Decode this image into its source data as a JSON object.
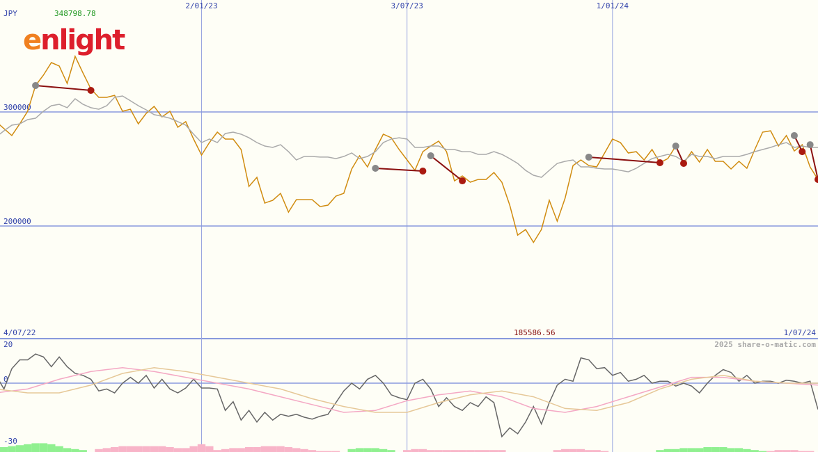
{
  "chart_data": [
    {
      "type": "line",
      "currency": "JPY",
      "max_label": 348798.78,
      "min_label": 185586.56,
      "logo": [
        "e",
        "nlight"
      ],
      "x": [
        0,
        1,
        2,
        3,
        4,
        5,
        6,
        7,
        8,
        9,
        10,
        11,
        12,
        13,
        14,
        15,
        16,
        17,
        18,
        19,
        20,
        21,
        22,
        23,
        24,
        25,
        26,
        27,
        28,
        29,
        30,
        31,
        32,
        33,
        34,
        35,
        36,
        37,
        38,
        39,
        40,
        41,
        42,
        43,
        44,
        45,
        46,
        47,
        48,
        49,
        50,
        51,
        52,
        53,
        54,
        55,
        56,
        57,
        58,
        59,
        60,
        61,
        62,
        63,
        64,
        65,
        66,
        67,
        68,
        69,
        70,
        71,
        72,
        73,
        74,
        75,
        76,
        77,
        78,
        79,
        80,
        81,
        82,
        83,
        84,
        85,
        86,
        87,
        88,
        89,
        90,
        91,
        92,
        93,
        94,
        95,
        96,
        97,
        98,
        99,
        100,
        101,
        102,
        103,
        104
      ],
      "xlim": [
        0.5,
        104
      ],
      "xticks": [
        {
          "value": 26,
          "label": "2/01/23"
        },
        {
          "value": 52,
          "label": "3/07/23"
        },
        {
          "value": 78,
          "label": "1/01/24"
        }
      ],
      "x_end_labels": [
        "4/07/22",
        "1/07/24"
      ],
      "ylim": [
        101220,
        398170
      ],
      "yticks": [
        200000,
        300000
      ],
      "grid": true,
      "series": [
        {
          "color": "#d08c10",
          "values": [
            291500,
            285400,
            279300,
            289600,
            300600,
            323200,
            332300,
            343300,
            340300,
            325000,
            348800,
            334200,
            320100,
            312800,
            312800,
            314600,
            300600,
            302400,
            289600,
            298800,
            304900,
            295700,
            300600,
            286600,
            291500,
            276200,
            262200,
            273200,
            282300,
            276200,
            276200,
            267100,
            234700,
            242700,
            220100,
            222500,
            228600,
            212200,
            223100,
            223100,
            223100,
            217000,
            218300,
            226200,
            228600,
            250000,
            261600,
            251800,
            267100,
            280500,
            277400,
            267100,
            257900,
            248800,
            265200,
            270100,
            274400,
            265200,
            239600,
            243900,
            238400,
            240800,
            240800,
            246900,
            238400,
            218300,
            192000,
            196900,
            185600,
            196900,
            222500,
            204200,
            224400,
            253000,
            257900,
            253000,
            251800,
            264000,
            276200,
            273200,
            264000,
            265200,
            257900,
            267100,
            255500,
            259100,
            270100,
            254900,
            265200,
            256100,
            267100,
            256700,
            256700,
            250000,
            256700,
            250600,
            267100,
            282300,
            283500,
            270100,
            279300,
            265800,
            271300,
            251800,
            240800
          ]
        },
        {
          "color": "#aaaaaa",
          "values": [
            278000,
            283500,
            288400,
            289600,
            293300,
            294500,
            300600,
            305500,
            306700,
            303700,
            311600,
            306700,
            303700,
            302400,
            305500,
            312800,
            314000,
            309800,
            305500,
            301800,
            297600,
            296300,
            294500,
            291500,
            288400,
            280500,
            273200,
            276200,
            273200,
            281100,
            282300,
            280500,
            277400,
            273200,
            270100,
            268900,
            271300,
            265200,
            257900,
            261000,
            261000,
            260400,
            260400,
            259100,
            261000,
            264000,
            259100,
            261000,
            265200,
            273200,
            276200,
            277400,
            276200,
            268900,
            268900,
            270100,
            270100,
            267100,
            267100,
            265200,
            265200,
            262800,
            262800,
            265200,
            262800,
            259100,
            254900,
            248800,
            244500,
            242700,
            248800,
            254900,
            256700,
            257900,
            251800,
            251800,
            250600,
            250000,
            250000,
            248800,
            247500,
            250600,
            254900,
            259100,
            261000,
            262800,
            261000,
            256700,
            262800,
            261000,
            261000,
            259100,
            261000,
            261000,
            261000,
            262800,
            265200,
            267100,
            268900,
            271300,
            273200,
            268900,
            270100,
            268900,
            268900
          ]
        }
      ],
      "divergences": [
        [
          5,
          323200,
          12,
          318900
        ],
        [
          48,
          250600,
          54,
          248200
        ],
        [
          55,
          261600,
          59,
          239600
        ],
        [
          75,
          260400,
          84,
          255500
        ],
        [
          86,
          270100,
          87,
          254900
        ],
        [
          101,
          279300,
          102,
          265200
        ],
        [
          103,
          271300,
          104,
          240800
        ]
      ],
      "divergence_colors": [
        "#888888",
        "#aa1a10",
        "#8b1010"
      ]
    },
    {
      "type": "line",
      "credit": "2025 share-o-matic.com",
      "x": [
        0,
        1,
        2,
        3,
        4,
        5,
        6,
        7,
        8,
        9,
        10,
        11,
        12,
        13,
        14,
        15,
        16,
        17,
        18,
        19,
        20,
        21,
        22,
        23,
        24,
        25,
        26,
        27,
        28,
        29,
        30,
        31,
        32,
        33,
        34,
        35,
        36,
        37,
        38,
        39,
        40,
        41,
        42,
        43,
        44,
        45,
        46,
        47,
        48,
        49,
        50,
        51,
        52,
        53,
        54,
        55,
        56,
        57,
        58,
        59,
        60,
        61,
        62,
        63,
        64,
        65,
        66,
        67,
        68,
        69,
        70,
        71,
        72,
        73,
        74,
        75,
        76,
        77,
        78,
        79,
        80,
        81,
        82,
        83,
        84,
        85,
        86,
        87,
        88,
        89,
        90,
        91,
        92,
        93,
        94,
        95,
        96,
        97,
        98,
        99,
        100,
        101,
        102,
        103,
        104
      ],
      "xlim": [
        0.5,
        104
      ],
      "ylim": [
        -35.4,
        22.9
      ],
      "yticks": [
        -30,
        0,
        20
      ],
      "zero_line": true,
      "series": [
        {
          "color": "#666666",
          "values": [
            4,
            -3,
            7.5,
            12,
            12,
            15,
            13.5,
            8.5,
            13.5,
            8.5,
            5,
            4,
            2,
            -4,
            -3,
            -5,
            0,
            3,
            0,
            4,
            -2.5,
            2,
            -3,
            -5,
            -2.5,
            2,
            -2.5,
            -2.5,
            -3,
            -14,
            -9.5,
            -19,
            -14,
            -20,
            -15,
            -19,
            -16,
            -17,
            -16,
            -17.5,
            -18.5,
            -17,
            -16,
            -10,
            -4,
            0,
            -3,
            2,
            4,
            0,
            -6,
            -7.5,
            -8.5,
            0,
            2,
            -3,
            -12,
            -7.5,
            -12,
            -14,
            -10,
            -12,
            -7,
            -10,
            -27.5,
            -23,
            -26,
            -20,
            -12,
            -21,
            -10,
            -1,
            2,
            1,
            13,
            12,
            7.5,
            8,
            4,
            5.5,
            1,
            2,
            4,
            0,
            1,
            1,
            -1.5,
            0,
            -1.5,
            -5,
            0,
            4,
            7,
            5.5,
            1,
            4,
            0,
            1,
            1,
            0,
            1.5,
            1,
            0,
            1,
            -13.5
          ]
        },
        {
          "color": "#f4a8c4",
          "x": [
            0,
            4,
            8,
            12,
            16,
            20,
            24,
            28,
            32,
            36,
            40,
            44,
            48,
            52,
            56,
            60,
            64,
            68,
            72,
            76,
            80,
            84,
            88,
            92,
            96,
            100,
            104
          ],
          "values": [
            -5,
            -3,
            2,
            6,
            8,
            6,
            3,
            0,
            -3,
            -7,
            -11,
            -15,
            -14,
            -9,
            -6,
            -4,
            -7,
            -13,
            -15,
            -12,
            -7,
            -2,
            3,
            3,
            1,
            0,
            -1
          ]
        },
        {
          "color": "#e6c898",
          "x": [
            0,
            4,
            8,
            12,
            16,
            20,
            24,
            28,
            32,
            36,
            40,
            44,
            48,
            52,
            56,
            60,
            64,
            68,
            72,
            76,
            80,
            84,
            88,
            92,
            96,
            100,
            104
          ],
          "values": [
            -3,
            -5,
            -5,
            -1,
            5,
            8,
            6,
            3,
            0,
            -3,
            -8,
            -12,
            -15,
            -15,
            -10,
            -6,
            -4,
            -7,
            -13,
            -14,
            -10,
            -3,
            2,
            4,
            1,
            0,
            0
          ]
        }
      ],
      "histogram": {
        "colors": [
          "#90f090",
          "#f8b4c8"
        ],
        "values": [
          2,
          2.5,
          3,
          3.5,
          4,
          4.5,
          4.5,
          4,
          3,
          2,
          1.5,
          1,
          0,
          -1.5,
          -2,
          -2.5,
          -3,
          -3,
          -3,
          -3,
          -3,
          -3,
          -2.5,
          -2,
          -2,
          -3,
          -4,
          -3,
          -1,
          -1.5,
          -2,
          -2,
          -2.5,
          -2.5,
          -3,
          -3,
          -3,
          -2.5,
          -2,
          -1.5,
          -1,
          -0.5,
          -0.5,
          -0.5,
          0,
          1.5,
          2,
          2,
          2,
          1.5,
          1,
          0,
          -1,
          -1.5,
          -1.5,
          -1,
          -1,
          -1,
          -1,
          -1,
          -1,
          -1,
          -1,
          -1,
          -1,
          0,
          0,
          0,
          0,
          0,
          0,
          -1,
          -1.5,
          -1.5,
          -1.5,
          -1,
          -1,
          -0.5,
          0,
          0,
          0,
          0,
          0,
          0,
          1,
          1.5,
          1.5,
          2,
          2,
          2,
          2.5,
          2.5,
          2.5,
          2,
          2,
          1.5,
          1,
          0.5,
          -0.5,
          -1,
          -1,
          -1,
          -0.5,
          -0.5,
          0
        ]
      }
    }
  ]
}
